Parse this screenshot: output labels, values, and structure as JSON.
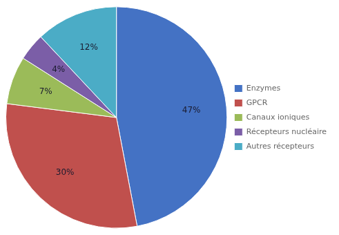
{
  "chart_data": {
    "type": "pie",
    "categories": [
      "Enzymes",
      "GPCR",
      "Canaux ioniques",
      "Récepteurs nucléaire",
      "Autres récepteurs"
    ],
    "values": [
      47,
      30,
      7,
      4,
      12
    ],
    "value_labels": [
      "47%",
      "30%",
      "7%",
      "4%",
      "12%"
    ],
    "colors": [
      "#4472C4",
      "#C0504D",
      "#9BBB59",
      "#7B5EA7",
      "#4BACC6"
    ],
    "data_labels": true,
    "legend": "right"
  }
}
